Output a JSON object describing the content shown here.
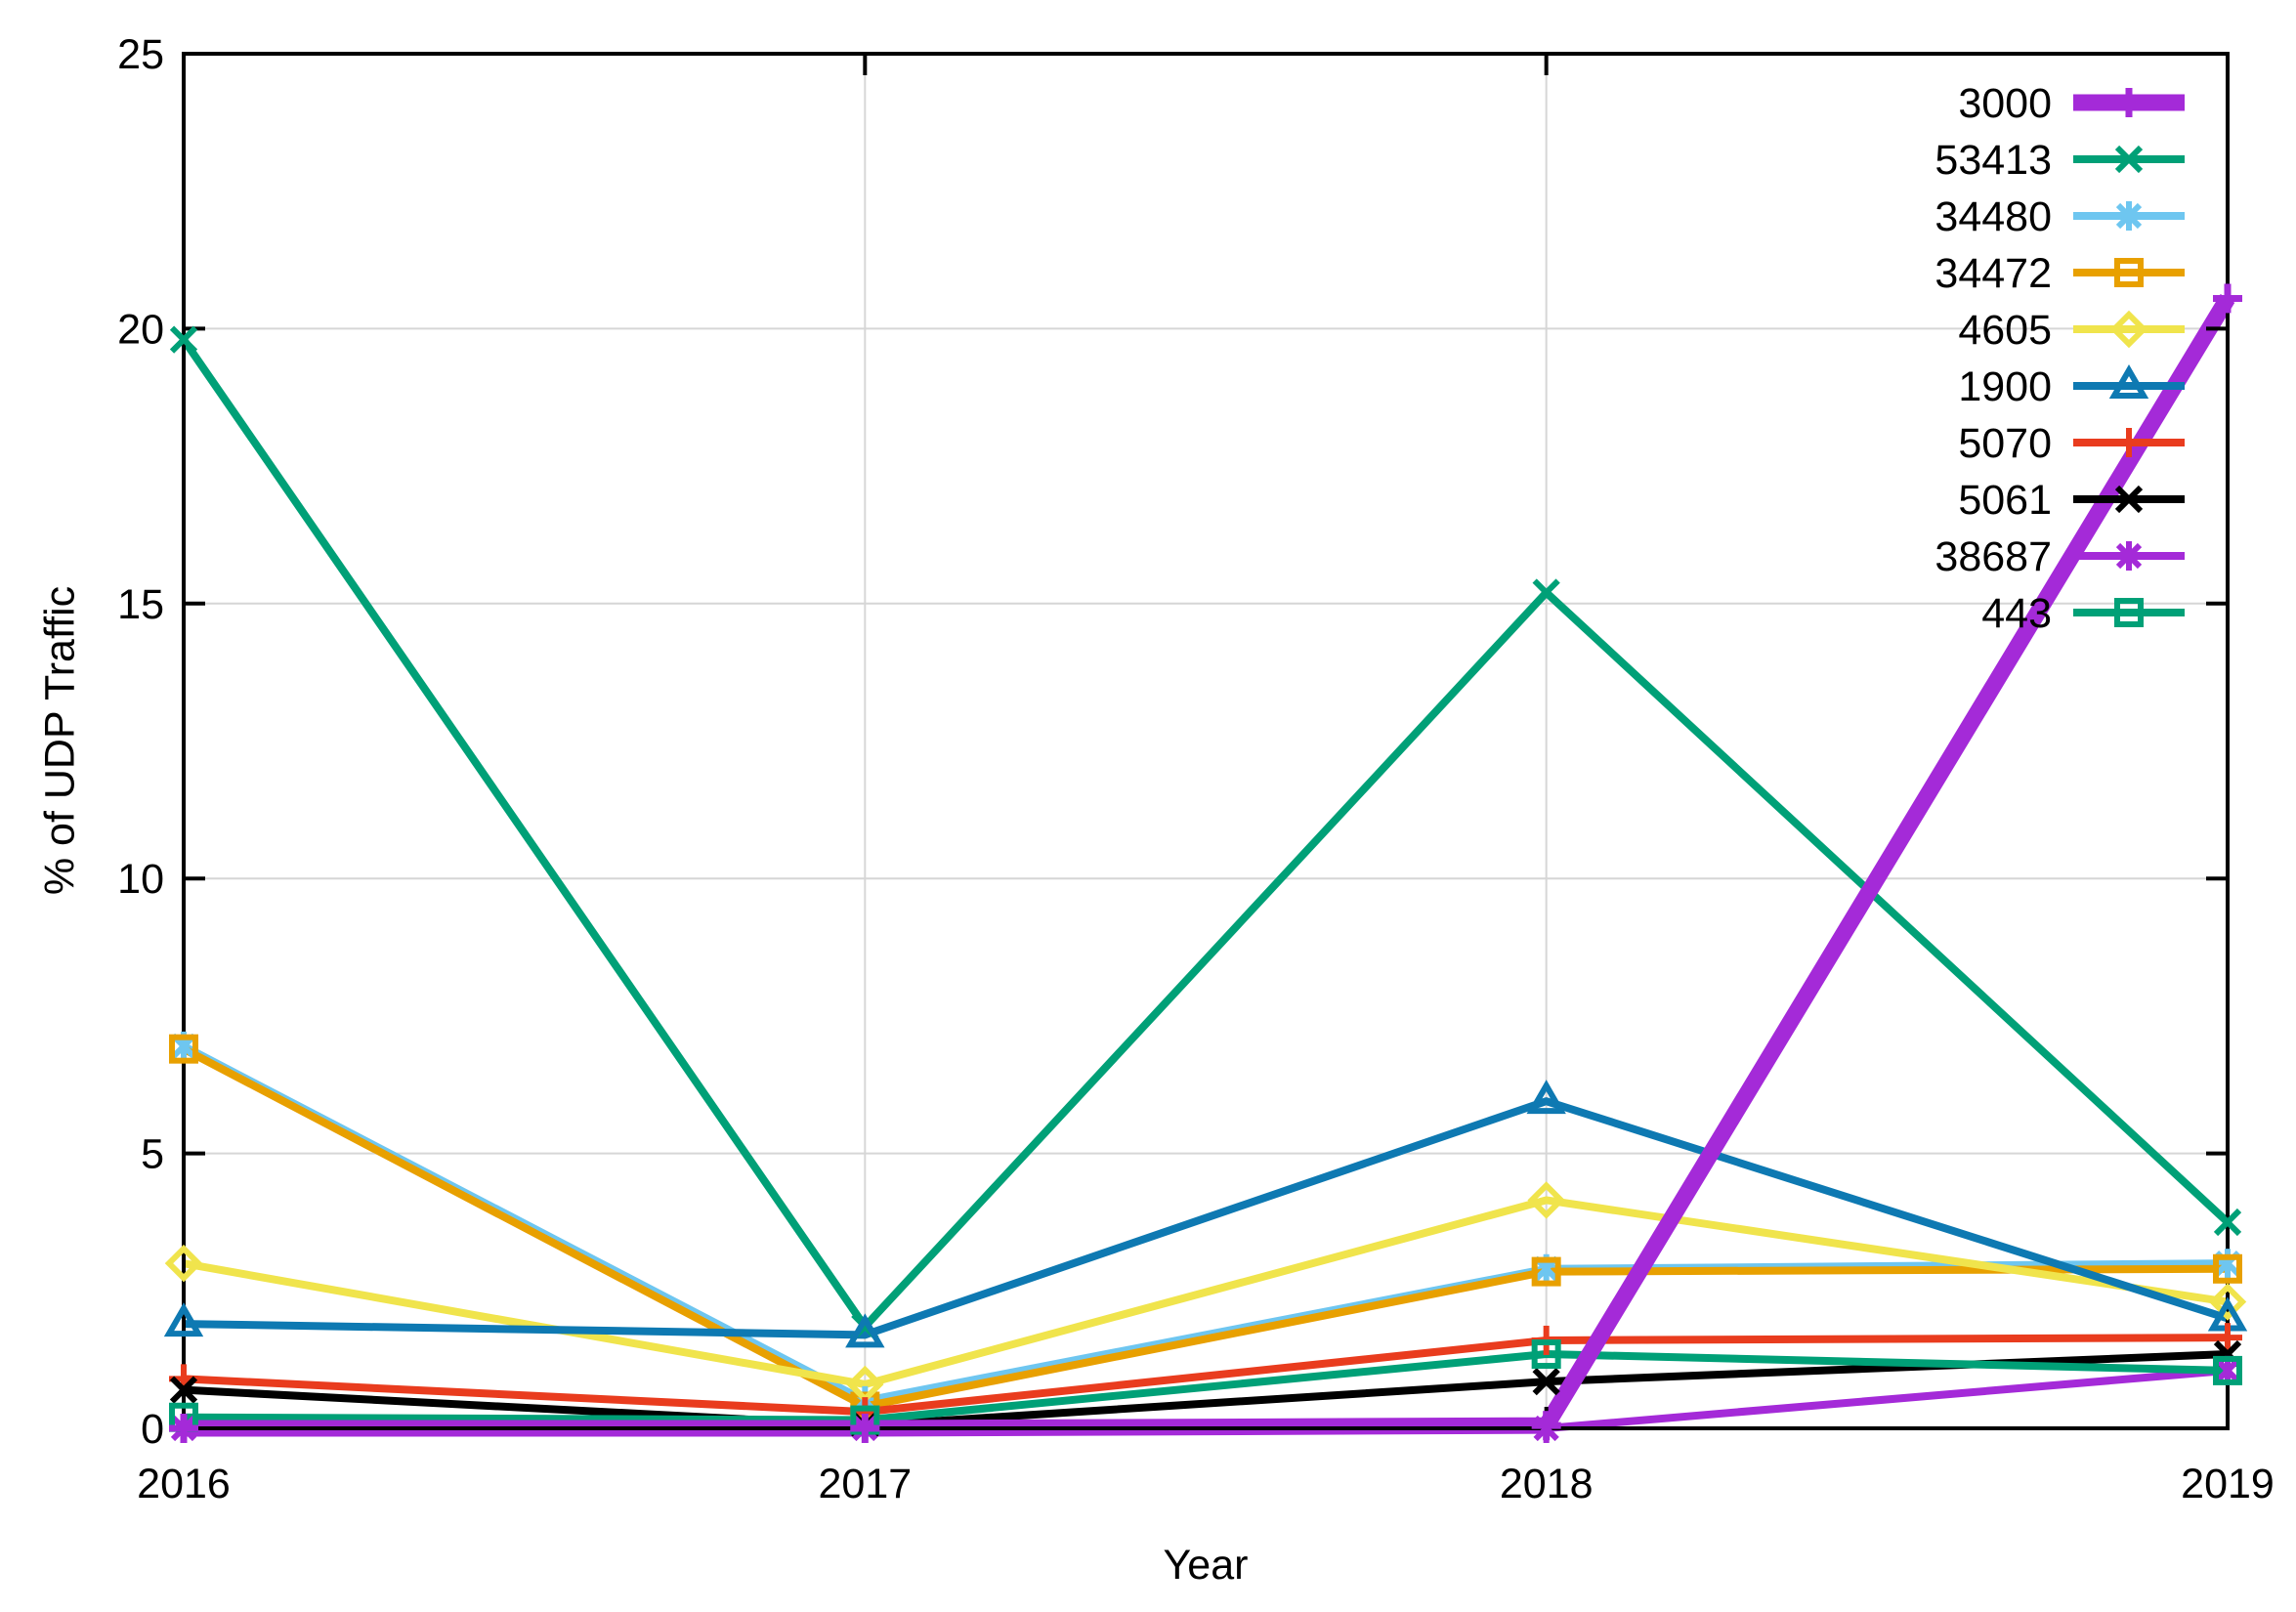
{
  "chart_data": {
    "type": "line",
    "title": "",
    "xlabel": "Year",
    "ylabel": "% of UDP Traffic",
    "x": [
      2016,
      2017,
      2018,
      2019
    ],
    "x_tick_labels": [
      "2016",
      "2017",
      "2018",
      "2019"
    ],
    "y_ticks": [
      0,
      5,
      10,
      15,
      20,
      25
    ],
    "y_tick_labels": [
      "0",
      "5",
      "10",
      "15",
      "20",
      "25"
    ],
    "ylim": [
      0,
      25
    ],
    "grid": true,
    "grid_color": "#d6d6d6",
    "legend_position": "top-right-inside",
    "series": [
      {
        "name": "3000",
        "color": "#a42ad8",
        "marker": "plus",
        "line_width": 17,
        "values": [
          0.0,
          0.0,
          0.05,
          20.55
        ]
      },
      {
        "name": "53413",
        "color": "#00a077",
        "marker": "x",
        "line_width": 8,
        "values": [
          19.8,
          1.85,
          15.2,
          3.75
        ]
      },
      {
        "name": "34480",
        "color": "#6ec6f0",
        "marker": "asterisk",
        "line_width": 8,
        "values": [
          6.95,
          0.5,
          2.9,
          3.0
        ]
      },
      {
        "name": "34472",
        "color": "#e8a000",
        "marker": "square",
        "line_width": 8,
        "values": [
          6.9,
          0.4,
          2.85,
          2.9
        ]
      },
      {
        "name": "4605",
        "color": "#f0e44c",
        "marker": "diamond",
        "line_width": 8,
        "values": [
          3.0,
          0.8,
          4.15,
          2.3
        ]
      },
      {
        "name": "1900",
        "color": "#0e79b2",
        "marker": "triangle",
        "line_width": 8,
        "values": [
          1.9,
          1.7,
          5.95,
          2.0
        ]
      },
      {
        "name": "5070",
        "color": "#e93c1e",
        "marker": "plus",
        "line_width": 8,
        "values": [
          0.9,
          0.3,
          1.6,
          1.65
        ]
      },
      {
        "name": "5061",
        "color": "#000000",
        "marker": "x",
        "line_width": 8,
        "values": [
          0.7,
          0.05,
          0.85,
          1.35
        ]
      },
      {
        "name": "38687",
        "color": "#a42ad8",
        "marker": "asterisk",
        "line_width": 8,
        "values": [
          0.0,
          0.0,
          0.0,
          1.05
        ]
      },
      {
        "name": "443",
        "color": "#00a077",
        "marker": "square",
        "line_width": 8,
        "values": [
          0.2,
          0.15,
          1.35,
          1.05
        ]
      }
    ]
  }
}
